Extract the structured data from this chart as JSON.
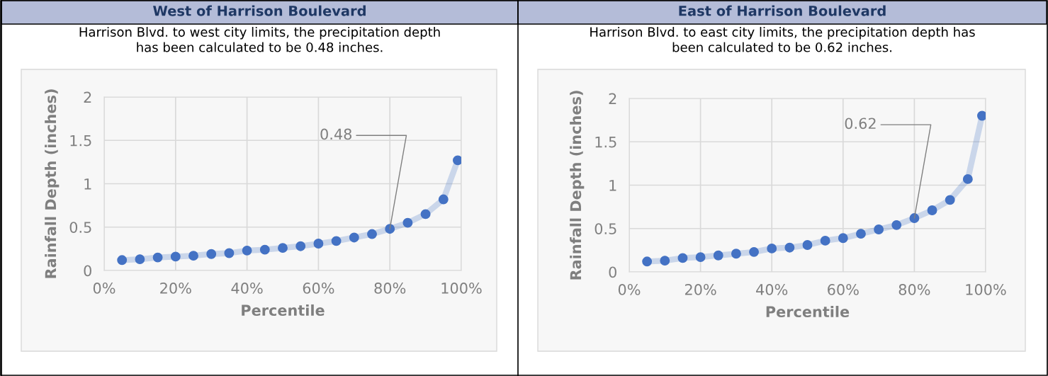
{
  "chart_data": [
    {
      "type": "line",
      "title": "West of Harrison Boulevard",
      "subtitle": "Harrison Blvd. to west city limits, the precipitation depth\nhas been calculated to be 0.48 inches.",
      "xlabel": "Percentile",
      "ylabel": "Rainfall Depth (inches)",
      "x": [
        5,
        10,
        15,
        20,
        25,
        30,
        35,
        40,
        45,
        50,
        55,
        60,
        65,
        70,
        75,
        80,
        85,
        90,
        95,
        99
      ],
      "series": [
        {
          "color": "#4472c4",
          "values": [
            0.12,
            0.13,
            0.15,
            0.16,
            0.17,
            0.19,
            0.2,
            0.23,
            0.24,
            0.26,
            0.28,
            0.31,
            0.34,
            0.38,
            0.42,
            0.48,
            0.55,
            0.65,
            0.82,
            1.27
          ]
        }
      ],
      "annotations": [
        {
          "text": "0.48",
          "x": 80,
          "y": 0.48
        }
      ],
      "xlim": [
        0,
        100
      ],
      "xticks": [
        {
          "value": 0,
          "label": "0%"
        },
        {
          "value": 20,
          "label": "20%"
        },
        {
          "value": 40,
          "label": "40%"
        },
        {
          "value": 60,
          "label": "60%"
        },
        {
          "value": 80,
          "label": "80%"
        },
        {
          "value": 100,
          "label": "100%"
        }
      ],
      "ylim": [
        0,
        2
      ],
      "yticks": [
        0,
        0.5,
        1,
        1.5,
        2
      ],
      "grid": true,
      "marker": "circle",
      "line_style": "solid"
    },
    {
      "type": "line",
      "title": "East of Harrison Boulevard",
      "subtitle": "Harrison Blvd. to east city limits, the precipitation depth has\nbeen calculated to be 0.62 inches.",
      "xlabel": "Percentile",
      "ylabel": "Rainfall Depth (inches)",
      "x": [
        5,
        10,
        15,
        20,
        25,
        30,
        35,
        40,
        45,
        50,
        55,
        60,
        65,
        70,
        75,
        80,
        85,
        90,
        95,
        99
      ],
      "series": [
        {
          "color": "#4472c4",
          "values": [
            0.12,
            0.13,
            0.16,
            0.17,
            0.19,
            0.21,
            0.23,
            0.27,
            0.28,
            0.31,
            0.36,
            0.39,
            0.44,
            0.49,
            0.54,
            0.62,
            0.71,
            0.83,
            1.07,
            1.8
          ]
        }
      ],
      "annotations": [
        {
          "text": "0.62",
          "x": 80,
          "y": 0.62
        }
      ],
      "xlim": [
        0,
        100
      ],
      "xticks": [
        {
          "value": 0,
          "label": "0%"
        },
        {
          "value": 20,
          "label": "20%"
        },
        {
          "value": 40,
          "label": "40%"
        },
        {
          "value": 60,
          "label": "60%"
        },
        {
          "value": 80,
          "label": "80%"
        },
        {
          "value": 100,
          "label": "100%"
        }
      ],
      "ylim": [
        0,
        2
      ],
      "yticks": [
        0,
        0.5,
        1,
        1.5,
        2
      ],
      "grid": true,
      "marker": "circle",
      "line_style": "solid"
    }
  ]
}
